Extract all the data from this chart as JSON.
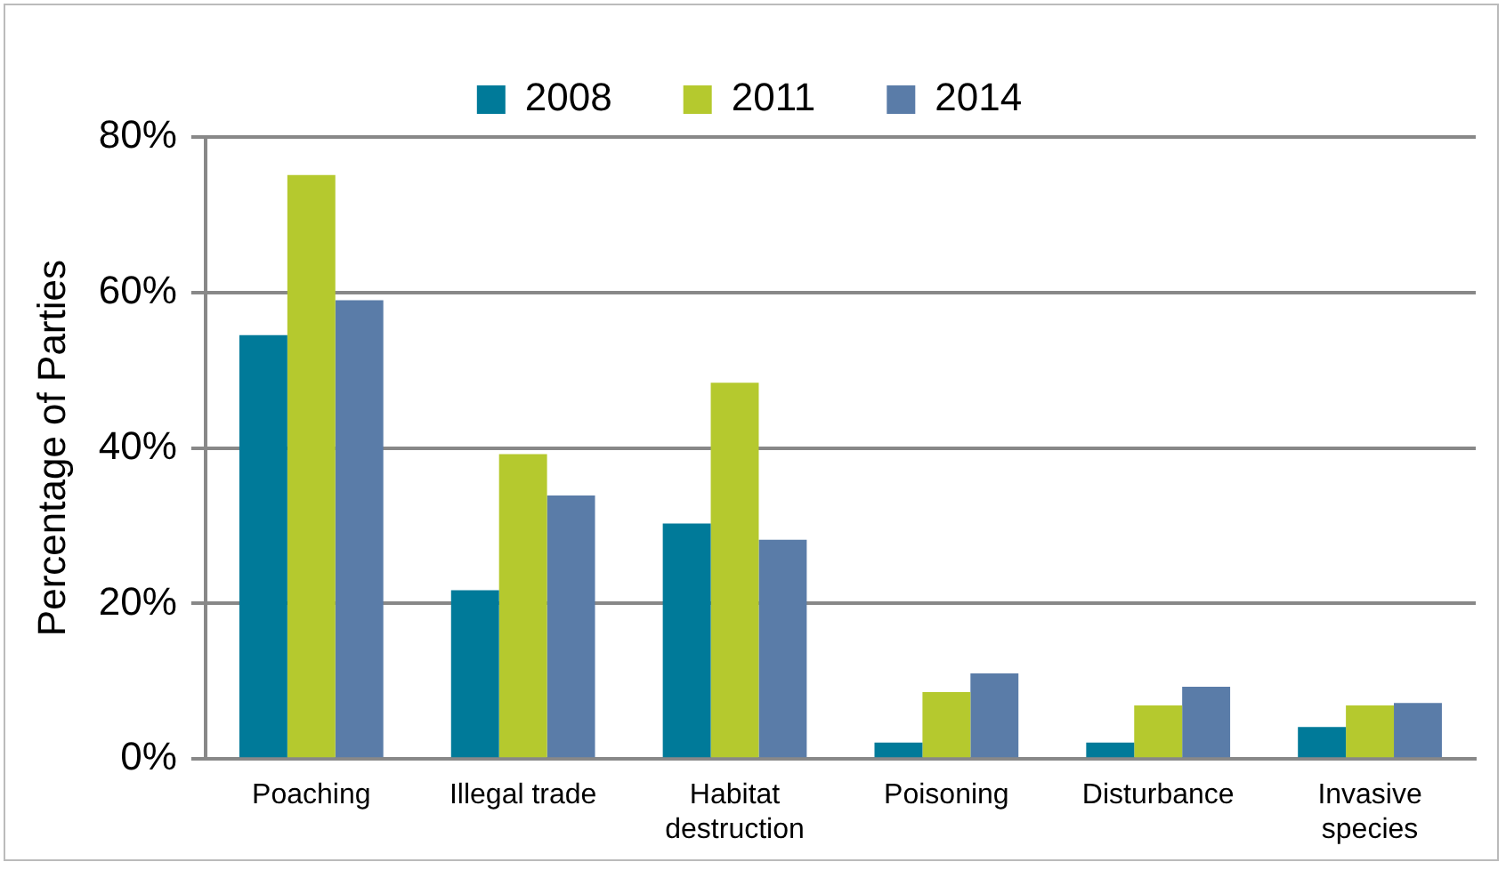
{
  "chart_data": {
    "type": "bar",
    "ylabel": "Percentage of Parties",
    "categories": [
      "Poaching",
      "Illegal trade",
      "Habitat\ndestruction",
      "Poisoning",
      "Disturbance",
      "Invasive\nspecies"
    ],
    "series": [
      {
        "name": "2008",
        "color": "#007a99",
        "values": [
          54.5,
          21.7,
          30.3,
          2.1,
          2.1,
          4.1
        ]
      },
      {
        "name": "2011",
        "color": "#b5c92e",
        "values": [
          75.1,
          39.2,
          48.4,
          8.6,
          6.9,
          6.9
        ]
      },
      {
        "name": "2014",
        "color": "#5a7ca8",
        "values": [
          59.0,
          33.9,
          28.2,
          11.0,
          9.3,
          7.2
        ]
      }
    ],
    "ylim": [
      0,
      80
    ],
    "yticks": [
      {
        "value": 0,
        "label": "0%"
      },
      {
        "value": 20,
        "label": "20%"
      },
      {
        "value": 40,
        "label": "40%"
      },
      {
        "value": 60,
        "label": "60%"
      },
      {
        "value": 80,
        "label": "80%"
      }
    ],
    "grid": "y",
    "legend": "top"
  }
}
